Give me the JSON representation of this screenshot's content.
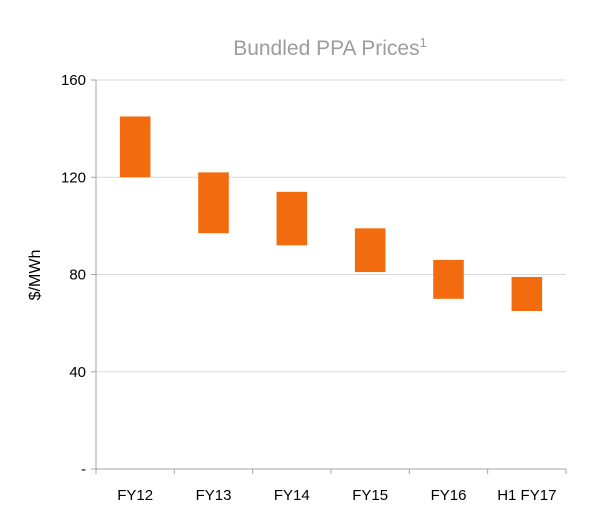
{
  "chart_data": {
    "type": "bar",
    "title": "Bundled PPA Prices",
    "title_superscript": "1",
    "ylabel": "$/MWh",
    "xlabel": "",
    "ylim": [
      0,
      160
    ],
    "y_ticks": [
      0,
      40,
      80,
      120,
      160
    ],
    "y_tick_labels": [
      "-",
      "40",
      "80",
      "120",
      "160"
    ],
    "grid": true,
    "categories": [
      "FY12",
      "FY13",
      "FY14",
      "FY15",
      "FY16",
      "H1 FY17"
    ],
    "series": [
      {
        "ranges": [
          [
            120,
            145
          ],
          [
            97,
            122
          ],
          [
            92,
            114
          ],
          [
            81,
            99
          ],
          [
            70,
            86
          ],
          [
            65,
            79
          ]
        ]
      }
    ],
    "colors": {
      "bar": "#F26B0F",
      "grid": "#D9D9D9",
      "axis": "#A6A6A6",
      "title": "#9C9C9C",
      "text": "#000000"
    }
  }
}
